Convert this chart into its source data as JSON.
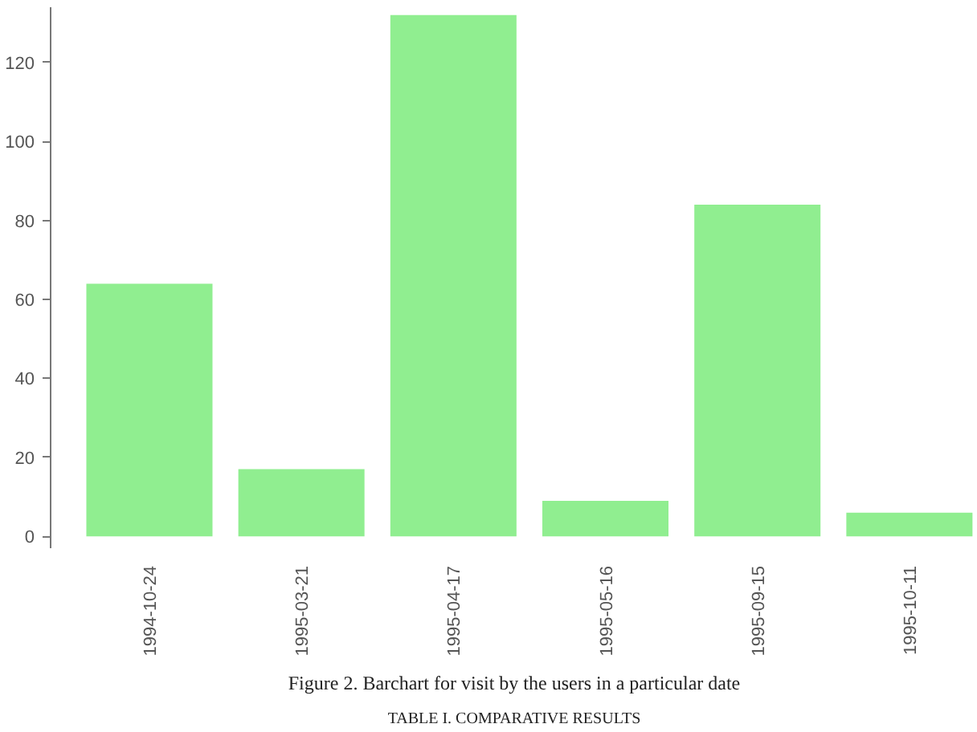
{
  "chart_data": {
    "type": "bar",
    "categories": [
      "1994-10-24",
      "1995-03-21",
      "1995-04-17",
      "1995-05-16",
      "1995-09-15",
      "1995-10-11"
    ],
    "values": [
      64,
      17,
      132,
      9,
      84,
      6
    ],
    "color": "#90ee90",
    "ylim": [
      -3,
      134
    ],
    "yticks": [
      0,
      20,
      40,
      60,
      80,
      100,
      120
    ],
    "grid": false,
    "annotations": [
      "Figure 2. Barchart for visit by the users in a particular date",
      "TABLE I. COMPARATIVE RESULTS"
    ]
  }
}
